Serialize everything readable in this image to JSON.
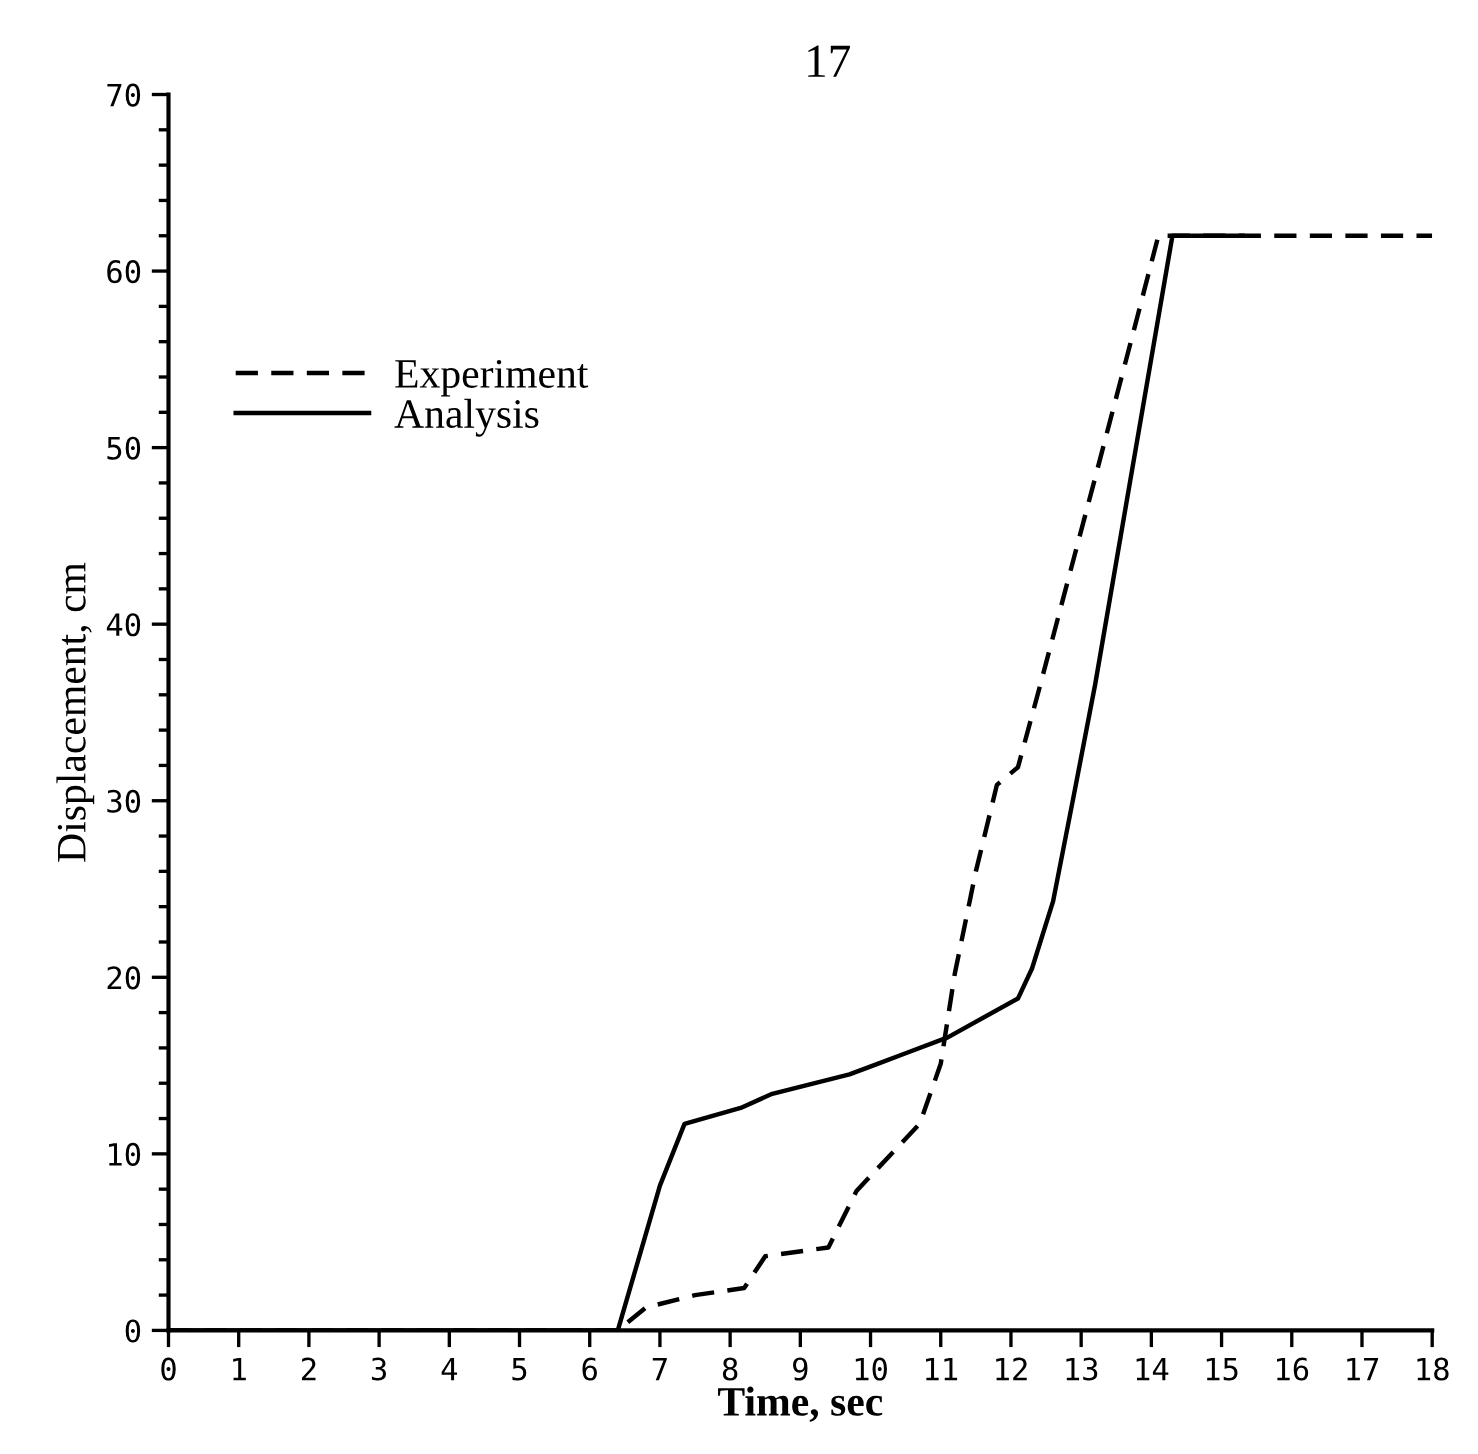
{
  "chart_data": {
    "type": "line",
    "xlabel": "Time, sec",
    "ylabel": "Displacement, cm",
    "annotations": [
      "17"
    ],
    "xlim": [
      0,
      18
    ],
    "ylim": [
      0,
      70
    ],
    "xticks": [
      0,
      1,
      2,
      3,
      4,
      5,
      6,
      7,
      8,
      9,
      10,
      11,
      12,
      13,
      14,
      15,
      16,
      17,
      18
    ],
    "yticks": [
      0,
      {
        "value": 2,
        "label": null
      },
      {
        "value": 4,
        "label": null
      },
      {
        "value": 6,
        "label": null
      },
      {
        "value": 8,
        "label": null
      },
      10,
      {
        "value": 12,
        "label": null
      },
      {
        "value": 14,
        "label": null
      },
      {
        "value": 16,
        "label": null
      },
      {
        "value": 18,
        "label": null
      },
      20,
      {
        "value": 22,
        "label": null
      },
      {
        "value": 24,
        "label": null
      },
      {
        "value": 26,
        "label": null
      },
      {
        "value": 28,
        "label": null
      },
      30,
      {
        "value": 32,
        "label": null
      },
      {
        "value": 34,
        "label": null
      },
      {
        "value": 36,
        "label": null
      },
      {
        "value": 38,
        "label": null
      },
      40,
      {
        "value": 42,
        "label": null
      },
      {
        "value": 44,
        "label": null
      },
      {
        "value": 46,
        "label": null
      },
      {
        "value": 48,
        "label": null
      },
      50,
      {
        "value": 52,
        "label": null
      },
      {
        "value": 54,
        "label": null
      },
      {
        "value": 56,
        "label": null
      },
      {
        "value": 58,
        "label": null
      },
      60,
      {
        "value": 62,
        "label": null
      },
      {
        "value": 64,
        "label": null
      },
      {
        "value": 66,
        "label": null
      },
      {
        "value": 68,
        "label": null
      },
      70
    ],
    "grid": false,
    "legend": "top left",
    "marker": "none",
    "series": [
      {
        "name": "Experiment",
        "color": "#000000",
        "line_style": "dashed",
        "x": [
          0,
          6.4,
          6.8,
          7.5,
          8.2,
          8.5,
          9.4,
          9.8,
          10.7,
          11.0,
          11.2,
          11.5,
          11.8,
          12.1,
          12.4,
          13.2,
          13.8,
          14.1,
          18
        ],
        "values": [
          0,
          0,
          1.3,
          2.0,
          2.4,
          4.2,
          4.7,
          7.9,
          11.7,
          15.1,
          20.2,
          26.0,
          30.9,
          31.9,
          36.3,
          48.3,
          57.4,
          62,
          62
        ]
      },
      {
        "name": "Analysis",
        "color": "#000000",
        "line_style": "solid",
        "x": [
          0,
          6.4,
          7.0,
          7.35,
          8.15,
          8.6,
          9.7,
          10.1,
          10.5,
          11.1,
          12.1,
          12.3,
          12.6,
          12.9,
          13.2,
          14.3,
          15.3
        ],
        "values": [
          0,
          0,
          8.2,
          11.7,
          12.6,
          13.4,
          14.5,
          15.1,
          15.7,
          16.6,
          18.8,
          20.5,
          24.3,
          30.4,
          36.6,
          62,
          62
        ]
      }
    ]
  }
}
